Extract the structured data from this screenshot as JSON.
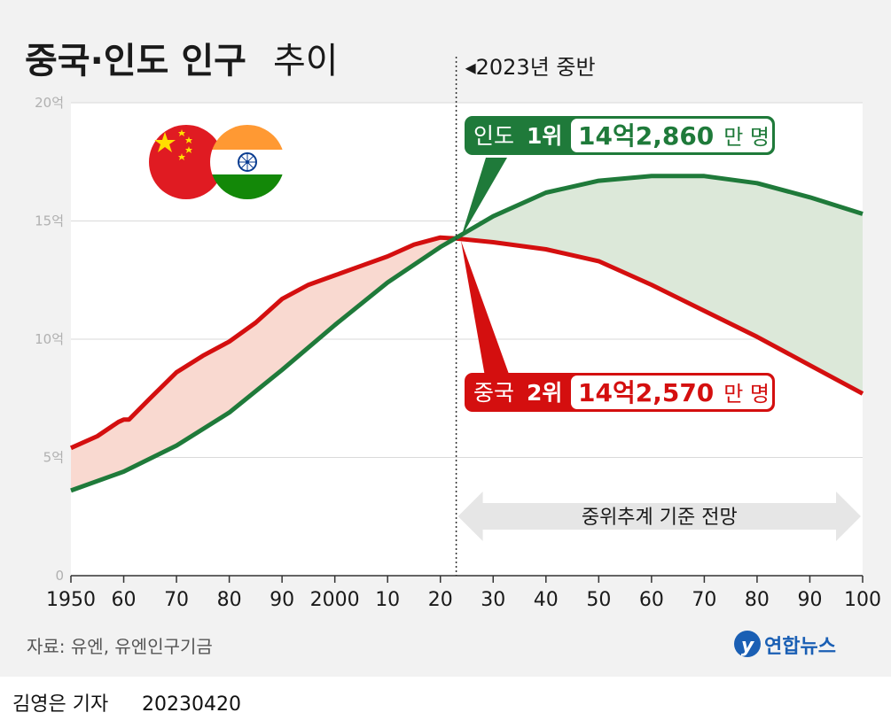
{
  "title": {
    "main": "중국·인도 인구",
    "sub": "추이"
  },
  "marker": {
    "label": "◂2023년 중반"
  },
  "projection": {
    "label": "중위추계 기준 전망"
  },
  "source": "자료: 유엔, 유엔인구기금",
  "logo": {
    "text": "연합뉴스",
    "color": "#1a5fb4"
  },
  "byline": {
    "author": "김영은 기자",
    "date": "20230420"
  },
  "callouts": {
    "india": {
      "name": "인도",
      "rank": "1위",
      "value_num": "14억2,860",
      "value_unit": "만 명",
      "color": "#1f7a3a"
    },
    "china": {
      "name": "중국",
      "rank": "2위",
      "value_num": "14억2,570",
      "value_unit": "만 명",
      "color": "#d40f0f"
    }
  },
  "chart_data": {
    "type": "line",
    "x_tick_labels": [
      "1950",
      "60",
      "70",
      "80",
      "90",
      "2000",
      "10",
      "20",
      "30",
      "40",
      "50",
      "60",
      "70",
      "80",
      "90",
      "100"
    ],
    "x_tick_values": [
      1950,
      1960,
      1970,
      1980,
      1990,
      2000,
      2010,
      2020,
      2030,
      2040,
      2050,
      2060,
      2070,
      2080,
      2090,
      2100
    ],
    "y_tick_labels": [
      "0",
      "5억",
      "10억",
      "15억",
      "20억"
    ],
    "y_tick_values": [
      0,
      5,
      10,
      15,
      20
    ],
    "xlim": [
      1950,
      2100
    ],
    "ylim": [
      0,
      20
    ],
    "ylabel": "억 명",
    "marker_x": 2023,
    "projection_range": [
      2023,
      2100
    ],
    "grid": true,
    "series": [
      {
        "name": "중국",
        "color": "#d40f0f",
        "fill": "#f9d9d0",
        "x": [
          1950,
          1955,
          1959,
          1960,
          1961,
          1965,
          1970,
          1975,
          1980,
          1985,
          1990,
          1995,
          2000,
          2005,
          2010,
          2015,
          2020,
          2023,
          2030,
          2040,
          2050,
          2060,
          2070,
          2080,
          2090,
          2100
        ],
        "values": [
          5.4,
          5.9,
          6.5,
          6.6,
          6.6,
          7.5,
          8.6,
          9.3,
          9.9,
          10.7,
          11.7,
          12.3,
          12.7,
          13.1,
          13.5,
          14.0,
          14.3,
          14.26,
          14.1,
          13.8,
          13.3,
          12.3,
          11.2,
          10.1,
          8.9,
          7.7
        ]
      },
      {
        "name": "인도",
        "color": "#1f7a3a",
        "fill": "#dce8d9",
        "x": [
          1950,
          1960,
          1970,
          1980,
          1990,
          2000,
          2010,
          2020,
          2023,
          2030,
          2040,
          2050,
          2060,
          2070,
          2080,
          2090,
          2100
        ],
        "values": [
          3.6,
          4.4,
          5.5,
          6.9,
          8.7,
          10.6,
          12.4,
          13.9,
          14.29,
          15.2,
          16.2,
          16.7,
          16.9,
          16.9,
          16.6,
          16.0,
          15.3
        ]
      }
    ]
  }
}
